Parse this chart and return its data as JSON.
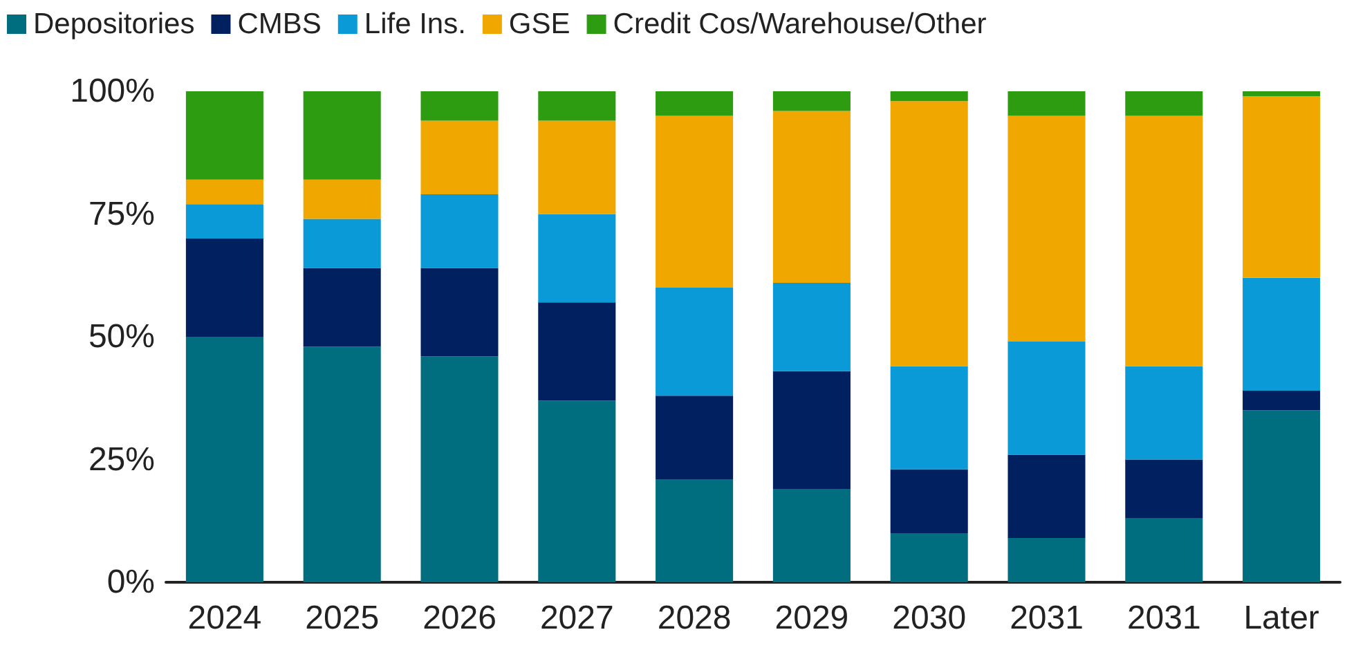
{
  "chart_data": {
    "type": "bar",
    "stacked": true,
    "categories": [
      "2024",
      "2025",
      "2026",
      "2027",
      "2028",
      "2029",
      "2030",
      "2031",
      "2031",
      "Later"
    ],
    "series": [
      {
        "name": "Depositories",
        "color": "#006e7f",
        "values": [
          50,
          48,
          46,
          37,
          21,
          19,
          10,
          9,
          13,
          35
        ]
      },
      {
        "name": "CMBS",
        "color": "#002060",
        "values": [
          20,
          16,
          18,
          20,
          17,
          24,
          13,
          17,
          12,
          4
        ]
      },
      {
        "name": "Life Ins.",
        "color": "#0a9ad8",
        "values": [
          7,
          10,
          15,
          18,
          22,
          18,
          21,
          23,
          19,
          23
        ]
      },
      {
        "name": "GSE",
        "color": "#f0a800",
        "values": [
          5,
          8,
          15,
          19,
          35,
          35,
          54,
          46,
          51,
          37
        ]
      },
      {
        "name": "Credit Cos/Warehouse/Other",
        "color": "#2e9c10",
        "values": [
          18,
          18,
          6,
          6,
          5,
          4,
          2,
          5,
          5,
          1
        ]
      }
    ],
    "ylim": [
      0,
      100
    ],
    "yticks": [
      {
        "value": 0,
        "label": "0%"
      },
      {
        "value": 25,
        "label": "25%"
      },
      {
        "value": 50,
        "label": "50%"
      },
      {
        "value": 75,
        "label": "75%"
      },
      {
        "value": 100,
        "label": "100%"
      }
    ],
    "grid": false,
    "legend": "top left"
  }
}
